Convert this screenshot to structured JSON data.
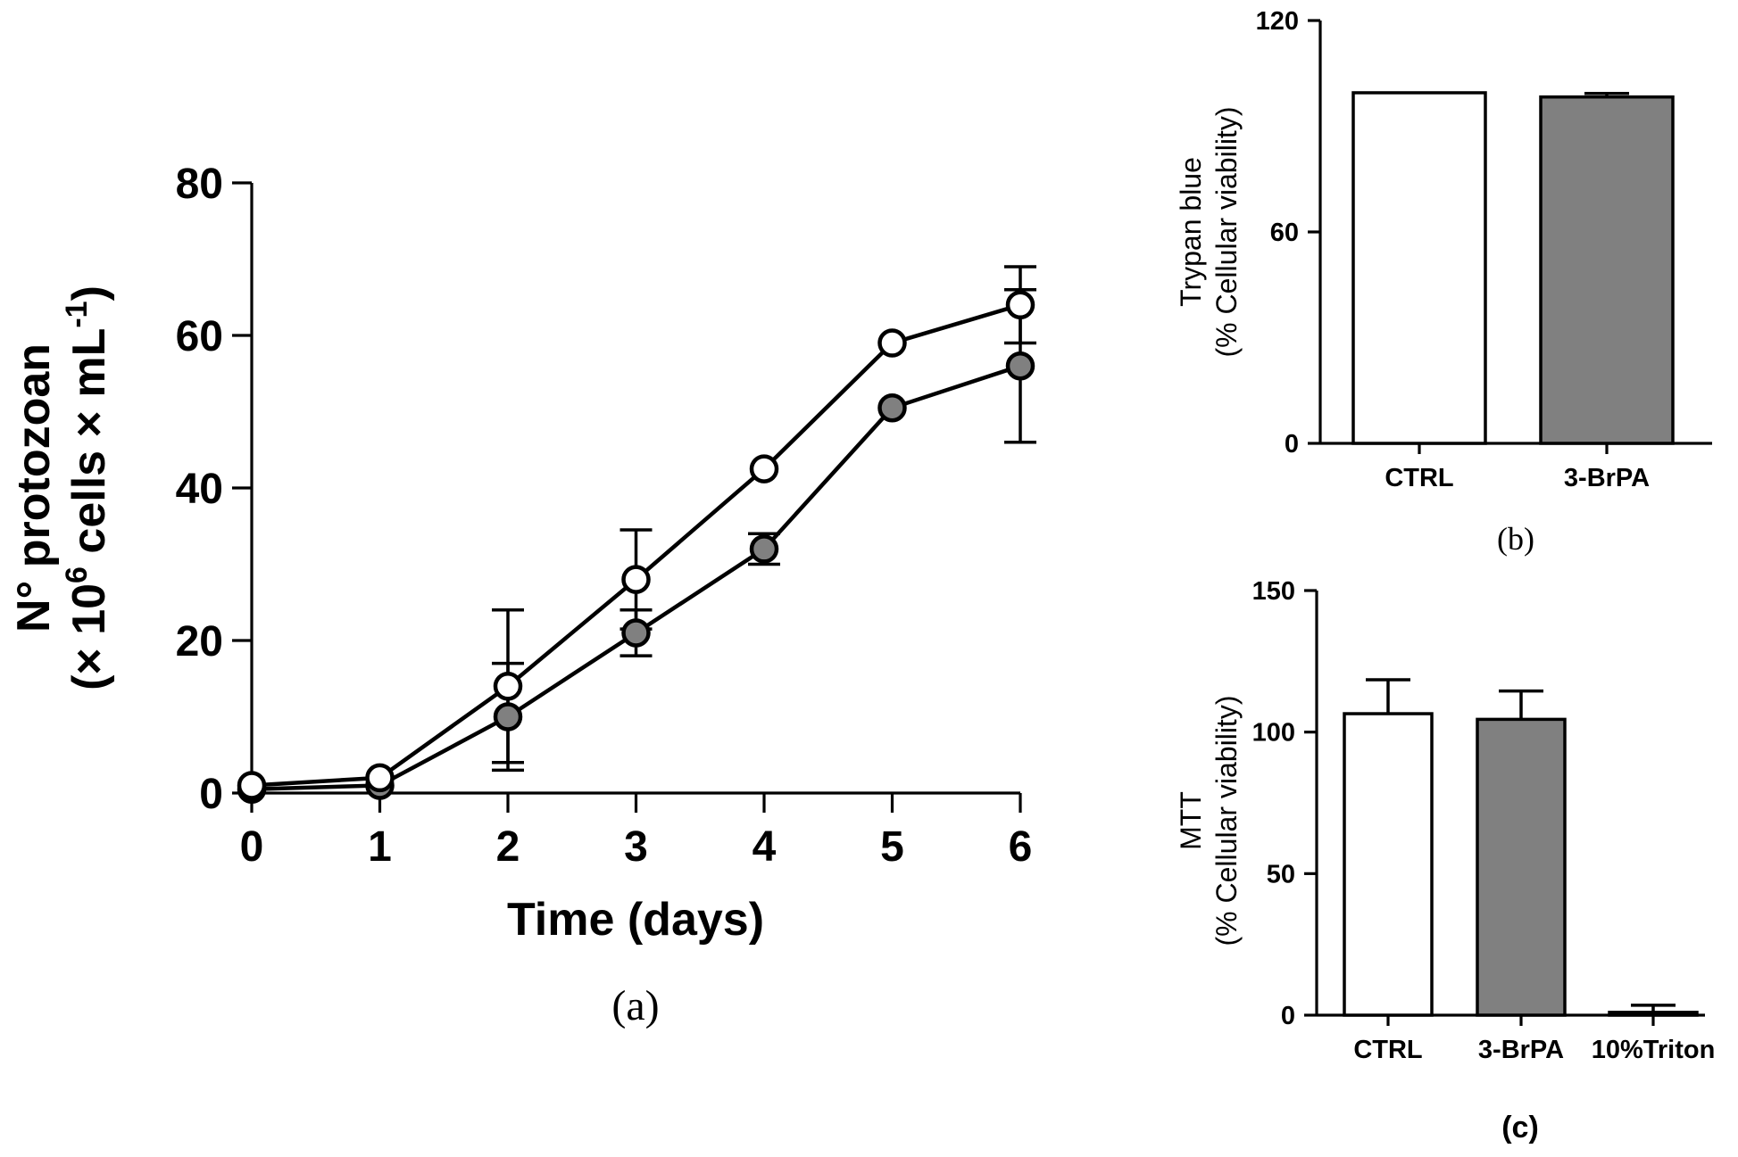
{
  "chart_data": [
    {
      "type": "line",
      "panel_label": "(a)",
      "xlabel": "Time (days)",
      "ylabel_line1": "N° protozoan",
      "ylabel_line2_prefix": "(× 10",
      "ylabel_line2_sup1": "6",
      "ylabel_line2_mid": " cells × mL",
      "ylabel_line2_sup2": "-1",
      "ylabel_line2_suffix": ")",
      "xlim": [
        0,
        6
      ],
      "ylim": [
        0,
        80
      ],
      "x_ticks": [
        "0",
        "1",
        "2",
        "3",
        "4",
        "5",
        "6"
      ],
      "y_ticks": [
        "0",
        "20",
        "40",
        "60",
        "80"
      ],
      "x": [
        0,
        1,
        2,
        3,
        4,
        5,
        6
      ],
      "series": [
        {
          "marker_fill": "#ffffff",
          "values": [
            1,
            2,
            14,
            28,
            42.5,
            59,
            64
          ],
          "errors": [
            0,
            0,
            10,
            6.5,
            0,
            0,
            5
          ]
        },
        {
          "marker_fill": "#808080",
          "values": [
            0.5,
            1,
            10,
            21,
            32,
            50.5,
            56
          ],
          "errors": [
            0,
            0,
            7,
            3,
            2,
            0,
            10
          ]
        }
      ]
    },
    {
      "type": "bar",
      "panel_label": "(b)",
      "ylabel_line1": "Trypan blue",
      "ylabel_line2": "(% Cellular viability)",
      "ylim": [
        0,
        120
      ],
      "y_ticks": [
        "0",
        "60",
        "120"
      ],
      "categories": [
        "CTRL",
        "3-BrPA"
      ],
      "values": [
        99.5,
        98.3
      ],
      "errors": [
        0,
        1.0
      ],
      "colors": [
        "#ffffff",
        "#808080"
      ]
    },
    {
      "type": "bar",
      "panel_label": "(c)",
      "ylabel_line1": "MTT",
      "ylabel_line2": "(% Cellular viability)",
      "ylim": [
        0,
        150
      ],
      "y_ticks": [
        "0",
        "50",
        "100",
        "150"
      ],
      "categories": [
        "CTRL",
        "3-BrPA",
        "10%Triton"
      ],
      "values": [
        106.5,
        104.5,
        1
      ],
      "errors": [
        12,
        10,
        2.5
      ],
      "colors": [
        "#ffffff",
        "#808080",
        "#ffffff"
      ]
    }
  ]
}
